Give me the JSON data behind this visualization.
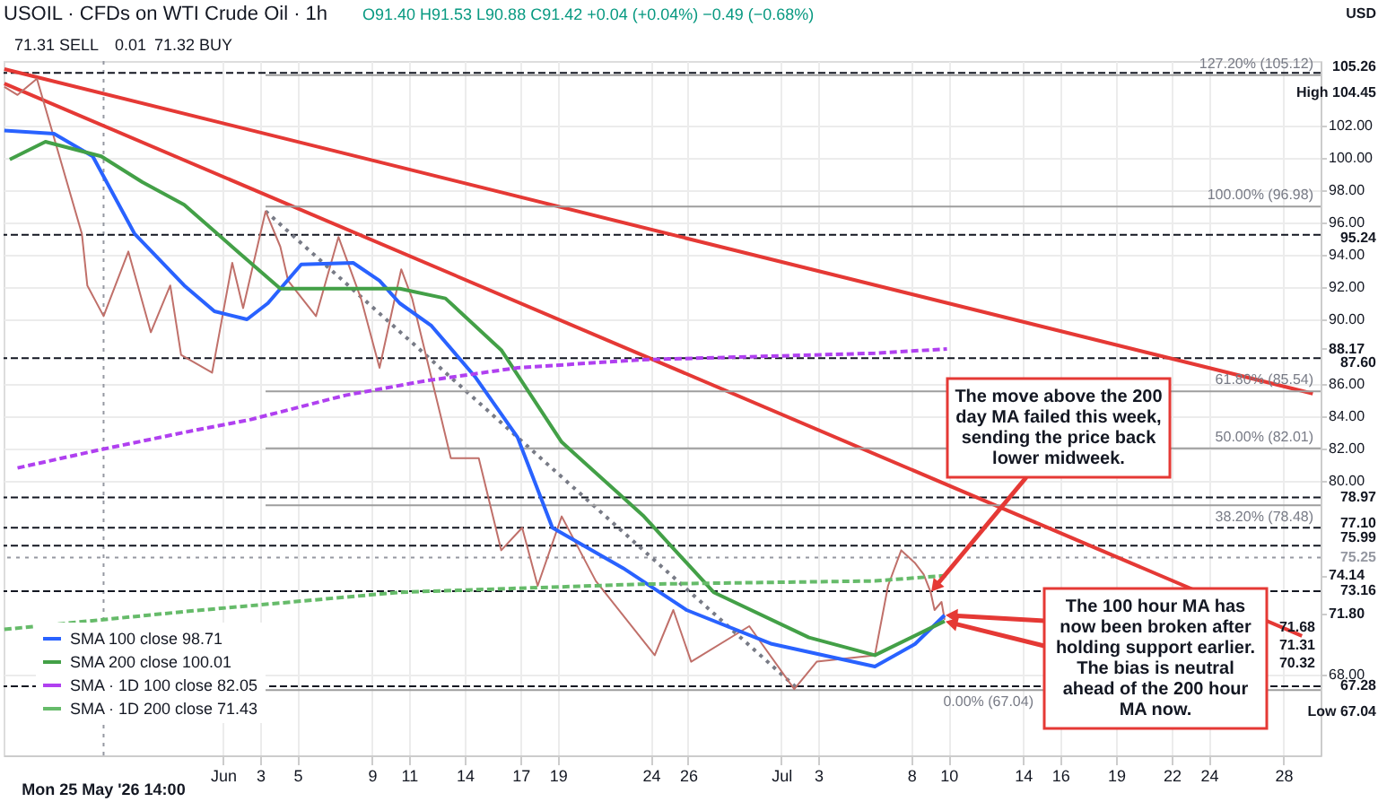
{
  "chart_data": {
    "type": "line",
    "title": "USOIL · CFDs on WTI Crude Oil · 1h",
    "subtitle": "O91.40 H91.53 L90.88 C91.42 +0.04 (+0.04%)   −0.49 (−0.68%)",
    "xlim": [
      "2026-05-20T05:00",
      "2026-07-30T00:00"
    ],
    "ylim": [
      63,
      106
    ],
    "xticks": [
      {
        "value": "2026-06-01",
        "label": "Jun"
      },
      {
        "value": "2026-06-03",
        "label": "3"
      },
      {
        "value": "2026-06-05",
        "label": "5"
      },
      {
        "value": "2026-06-09",
        "label": "9"
      },
      {
        "value": "2026-06-11",
        "label": "11"
      },
      {
        "value": "2026-06-14",
        "label": "14"
      },
      {
        "value": "2026-06-17",
        "label": "17"
      },
      {
        "value": "2026-06-19",
        "label": "19"
      },
      {
        "value": "2026-06-24",
        "label": "24"
      },
      {
        "value": "2026-06-26",
        "label": "26"
      },
      {
        "value": "2026-07-01",
        "label": "Jul"
      },
      {
        "value": "2026-07-03",
        "label": "3"
      },
      {
        "value": "2026-07-08",
        "label": "8"
      },
      {
        "value": "2026-07-10",
        "label": "10"
      },
      {
        "value": "2026-07-14",
        "label": "14"
      },
      {
        "value": "2026-07-16",
        "label": "16"
      },
      {
        "value": "2026-07-19",
        "label": "19"
      },
      {
        "value": "2026-07-22",
        "label": "22"
      },
      {
        "value": "2026-07-24",
        "label": "24"
      },
      {
        "value": "2026-07-28",
        "label": "28"
      }
    ],
    "yticks": [
      {
        "value": 68,
        "label": "68.00"
      },
      {
        "value": 71.8,
        "label": "71.80"
      },
      {
        "value": 74.14,
        "label": "74.14"
      },
      {
        "value": 80,
        "label": "80.00"
      },
      {
        "value": 82,
        "label": "82.00"
      },
      {
        "value": 84,
        "label": "84.00"
      },
      {
        "value": 86,
        "label": "86.00"
      },
      {
        "value": 88.17,
        "label": "88.17"
      },
      {
        "value": 90,
        "label": "90.00"
      },
      {
        "value": 92,
        "label": "92.00"
      },
      {
        "value": 94,
        "label": "94.00"
      },
      {
        "value": 96,
        "label": "96.00"
      },
      {
        "value": 98,
        "label": "98.00"
      },
      {
        "value": 100,
        "label": "100.00"
      },
      {
        "value": 102,
        "label": "102.00"
      }
    ],
    "grid": true,
    "legend": "bottom left",
    "series": [
      {
        "color": "#e53935",
        "line_style": "solid",
        "x": [
          "2026-05-20T06:00",
          "2026-07-29T14:00"
        ],
        "values": [
          105.5,
          85.4
        ]
      },
      {
        "color": "#e53935",
        "line_style": "solid",
        "x": [
          "2026-05-20T06:00",
          "2026-07-29T00:00"
        ],
        "values": [
          104.6,
          70.4
        ]
      },
      {
        "color": "#787b86",
        "line_style": "dotted",
        "x": [
          "2026-06-03T07:00",
          "2026-07-01T22:00"
        ],
        "values": [
          96.7,
          67.1
        ]
      },
      {
        "name": "127.20% (105.12)",
        "color": "#9e9e9e",
        "line_style": "solid",
        "x": [
          "2026-06-03T07:00",
          "2026-07-30T00:00"
        ],
        "values": [
          105.12,
          105.12
        ]
      },
      {
        "name": "100.00% (96.98)",
        "color": "#9e9e9e",
        "line_style": "solid",
        "x": [
          "2026-06-03T07:00",
          "2026-07-30T00:00"
        ],
        "values": [
          96.98,
          96.98
        ]
      },
      {
        "name": "61.80% (85.54)",
        "color": "#9e9e9e",
        "line_style": "solid",
        "x": [
          "2026-06-03T07:00",
          "2026-07-30T00:00"
        ],
        "values": [
          85.54,
          85.54
        ]
      },
      {
        "name": "50.00% (82.01)",
        "color": "#9e9e9e",
        "line_style": "solid",
        "x": [
          "2026-06-03T07:00",
          "2026-07-30T00:00"
        ],
        "values": [
          82.01,
          82.01
        ]
      },
      {
        "name": "38.20% (78.48)",
        "color": "#9e9e9e",
        "line_style": "solid",
        "x": [
          "2026-06-03T07:00",
          "2026-07-30T00:00"
        ],
        "values": [
          78.48,
          78.48
        ]
      },
      {
        "name": "0.00% (67.04)",
        "color": "#9e9e9e",
        "line_style": "solid",
        "x": [
          "2026-06-03T07:00",
          "2026-07-30T00:00"
        ],
        "values": [
          67.04,
          67.04
        ]
      },
      {
        "color": "#c0706a",
        "line_style": "solid",
        "x": [
          "2026-05-20T06:00",
          "2026-05-20T23:00",
          "2026-05-22T00:00",
          "2026-05-24T10:00",
          "2026-05-24T17:00",
          "2026-05-25T14:00",
          "2026-05-26T22:00",
          "2026-05-28T03:00",
          "2026-05-29T04:00",
          "2026-05-29T18:00",
          "2026-05-31T10:00",
          "2026-06-01T12:00",
          "2026-06-02T02:00",
          "2026-06-03T07:00",
          "2026-06-04T02:00",
          "2026-06-04T12:00",
          "2026-06-06T00:00",
          "2026-06-07T05:00",
          "2026-06-08T10:00",
          "2026-06-09T10:00",
          "2026-06-10T14:00",
          "2026-06-11T04:00",
          "2026-06-12T16:00",
          "2026-06-13T06:00",
          "2026-06-14T18:00",
          "2026-06-15T23:00",
          "2026-06-17T02:00",
          "2026-06-17T22:00",
          "2026-06-19T05:00",
          "2026-06-21T01:00",
          "2026-06-24T05:00",
          "2026-06-25T05:00",
          "2026-06-26T04:00",
          "2026-06-29T07:00",
          "2026-07-01T17:00",
          "2026-07-02T22:00",
          "2026-07-06T01:00",
          "2026-07-06T18:00",
          "2026-07-07T11:00",
          "2026-07-08T05:00",
          "2026-07-08T16:00",
          "2026-07-09T01:00",
          "2026-07-09T06:00",
          "2026-07-09T15:00",
          "2026-07-09T19:00"
        ],
        "values": [
          104.4,
          103.9,
          104.9,
          95.3,
          92.1,
          90.2,
          94.2,
          89.2,
          92.1,
          87.8,
          86.7,
          93.5,
          90.7,
          96.7,
          94.5,
          92.4,
          90.2,
          95.1,
          91.3,
          87.0,
          93.1,
          91.3,
          84.2,
          81.4,
          81.4,
          75.7,
          77.1,
          73.5,
          77.8,
          73.8,
          69.2,
          72.0,
          68.8,
          71.0,
          67.1,
          68.8,
          69.2,
          73.5,
          75.7,
          74.9,
          74.2,
          73.1,
          72.0,
          72.5,
          71.4
        ]
      },
      {
        "name": "SMA 100 close 98.71",
        "color": "#2962ff",
        "line_style": "solid",
        "x": [
          "2026-05-20T06:00",
          "2026-05-22T22:00",
          "2026-05-25T00:00",
          "2026-05-27T06:00",
          "2026-05-29T22:00",
          "2026-05-31T13:00",
          "2026-06-02T07:00",
          "2026-06-03T10:00",
          "2026-06-05T05:00",
          "2026-06-08T00:00",
          "2026-06-09T10:00",
          "2026-06-10T12:00",
          "2026-06-12T05:00",
          "2026-06-14T14:00",
          "2026-06-16T20:00",
          "2026-06-18T17:00",
          "2026-06-22T12:00",
          "2026-06-25T22:00",
          "2026-06-30T12:00",
          "2026-07-06T01:00",
          "2026-07-08T05:00",
          "2026-07-09T19:00"
        ],
        "values": [
          101.7,
          101.5,
          100.1,
          95.3,
          92.1,
          90.5,
          90.0,
          91.0,
          93.4,
          93.5,
          92.4,
          91.0,
          89.6,
          86.4,
          82.7,
          77.1,
          74.6,
          72.0,
          69.9,
          68.5,
          69.9,
          71.68
        ]
      },
      {
        "name": "SMA 200 close 100.01",
        "color": "#43a047",
        "line_style": "solid",
        "x": [
          "2026-05-20T13:00",
          "2026-05-22T11:00",
          "2026-05-25T11:00",
          "2026-05-27T16:00",
          "2026-05-29T22:00",
          "2026-06-01T19:00",
          "2026-06-04T02:00",
          "2026-06-10T12:00",
          "2026-06-12T23:00",
          "2026-06-15T23:00",
          "2026-06-19T05:00",
          "2026-06-23T15:00",
          "2026-06-27T09:00",
          "2026-07-02T12:00",
          "2026-07-06T01:00",
          "2026-07-09T19:00"
        ],
        "values": [
          99.9,
          101.0,
          100.1,
          98.5,
          97.1,
          94.2,
          91.9,
          91.9,
          91.3,
          88.1,
          82.4,
          77.8,
          73.1,
          70.3,
          69.2,
          71.31
        ]
      },
      {
        "name": "SMA · 1D 100 close 82.05",
        "color": "#b040f0",
        "line_style": "dashed",
        "x": [
          "2026-05-20T23:00",
          "2026-05-25T07:00",
          "2026-05-29T22:00",
          "2026-06-02T12:00",
          "2026-06-07T14:00",
          "2026-06-11T22:00",
          "2026-06-16T20:00",
          "2026-06-23T11:00",
          "2026-07-06T01:00",
          "2026-07-09T22:00"
        ],
        "values": [
          80.8,
          81.9,
          83.0,
          83.8,
          85.3,
          86.2,
          87.0,
          87.5,
          87.9,
          88.17
        ]
      },
      {
        "name": "SMA · 1D 200 close 71.43",
        "color": "#66bb6a",
        "line_style": "dashed",
        "x": [
          "2026-05-20T06:00",
          "2026-05-29T22:00",
          "2026-06-10T12:00",
          "2026-06-23T11:00",
          "2026-07-06T01:00",
          "2026-07-09T22:00"
        ],
        "values": [
          70.8,
          71.9,
          73.1,
          73.6,
          73.8,
          74.14
        ]
      }
    ],
    "ref_lines": [
      {
        "axis": "x",
        "value": "2026-05-25T14:00",
        "label": "Mon 25 May '26 14:00",
        "color": "#9598a1",
        "line_style": "dotted"
      },
      {
        "axis": "y",
        "value": 105.26,
        "label": "105.26",
        "color": "#131722",
        "line_style": "dashed"
      },
      {
        "axis": "y",
        "value": 95.24,
        "label": "95.24",
        "color": "#131722",
        "line_style": "dashed"
      },
      {
        "axis": "y",
        "value": 87.6,
        "label": "87.60",
        "color": "#131722",
        "line_style": "dashed"
      },
      {
        "axis": "y",
        "value": 78.97,
        "label": "78.97",
        "color": "#131722",
        "line_style": "dashed"
      },
      {
        "axis": "y",
        "value": 77.1,
        "label": "77.10",
        "color": "#131722",
        "line_style": "dashed"
      },
      {
        "axis": "y",
        "value": 75.99,
        "label": "75.99",
        "color": "#131722",
        "line_style": "dashed"
      },
      {
        "axis": "y",
        "value": 75.25,
        "label": "75.25",
        "color": "#9598a1",
        "line_style": "dotted"
      },
      {
        "axis": "y",
        "value": 73.16,
        "label": "73.16",
        "color": "#131722",
        "line_style": "dashed"
      },
      {
        "axis": "y",
        "value": 67.28,
        "label": "67.28",
        "color": "#131722",
        "line_style": "dashed"
      }
    ],
    "annotations": [
      "71.31 SELL",
      "0.01",
      "71.32 BUY",
      "USD",
      "High 104.45",
      "Low 67.04",
      "71.68",
      "71.31",
      "70.32",
      {
        "text": "The move above the 200\nday MA failed this week,\nsending the price back\nlower midweek.",
        "x": "2026-07-09T01:00",
        "y": 73.1
      },
      {
        "text": "The 100 hour MA has\nnow been broken after\nholding support earlier.\nThe bias is neutral\nahead of the 200 hour\nMA now.",
        "x": "2026-07-09T19:00",
        "y": 71.68
      }
    ]
  }
}
